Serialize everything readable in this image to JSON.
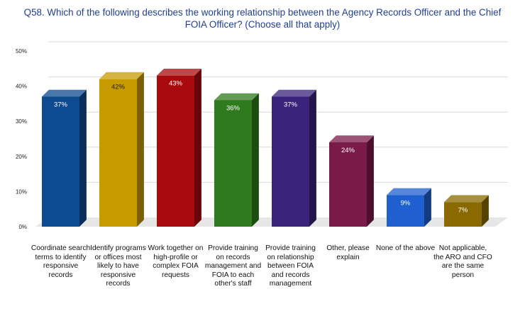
{
  "chart_data": {
    "type": "bar",
    "title": "Q58. Which of the following describes the working relationship between the Agency Records Officer and the Chief FOIA Officer? (Choose all that apply)",
    "categories": [
      "Coordinate search terms to identify responsive records",
      "Identify programs or offices most likely to have responsive records",
      "Work together on high-profile or complex FOIA requests",
      "Provide training on records management and FOIA to each other's staff",
      "Provide training on relationship between FOIA and records management",
      "Other, please explain",
      "None of the above",
      "Not applicable, the ARO and CFO are the same person"
    ],
    "values": [
      37,
      42,
      43,
      36,
      37,
      24,
      9,
      7
    ],
    "value_labels": [
      "37%",
      "42%",
      "43%",
      "36%",
      "37%",
      "24%",
      "9%",
      "7%"
    ],
    "colors": [
      "#0d4a8f",
      "#c79a00",
      "#a80a0e",
      "#2f7a1c",
      "#3a237a",
      "#7a1a48",
      "#1f5fcf",
      "#8a6a00"
    ],
    "label_colors": [
      "#ffffff",
      "#222222",
      "#ffffff",
      "#ffffff",
      "#ffffff",
      "#ffffff",
      "#ffffff",
      "#ffffff"
    ],
    "ylim": [
      0,
      50
    ],
    "yticks": [
      0,
      10,
      20,
      30,
      40,
      50
    ],
    "ytick_labels": [
      "0%",
      "10%",
      "20%",
      "30%",
      "40%",
      "50%"
    ],
    "grid": true,
    "xlabel": "",
    "ylabel": ""
  }
}
